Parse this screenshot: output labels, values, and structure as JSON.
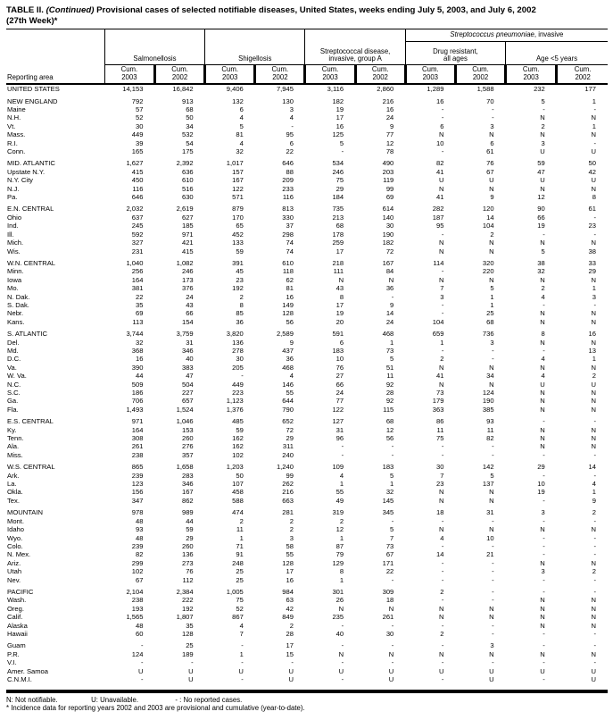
{
  "title": {
    "part1": "TABLE II. ",
    "continued": "(Continued)",
    "part2": " Provisional cases of selected notifiable diseases, United States, weeks ending July 5, 2003, and July 6, 2002",
    "line2": "(27th Week)*"
  },
  "header": {
    "reporting_area_label": "Reporting area",
    "spanner_italic": "Streptococcus pneumoniae",
    "spanner_rest": ", invasive",
    "groups": [
      {
        "line1": "Salmonellosis",
        "line2": ""
      },
      {
        "line1": "Shigellosis",
        "line2": ""
      },
      {
        "line1": "Streptococcal disease,",
        "line2": "invasive, group A"
      },
      {
        "line1": "Drug resistant,",
        "line2": "all ages"
      },
      {
        "line1": "Age <5 years",
        "line2": ""
      }
    ],
    "sub_columns": [
      {
        "line1": "Cum.",
        "line2": "2003"
      },
      {
        "line1": "Cum.",
        "line2": "2002"
      }
    ]
  },
  "table": {
    "sections": [
      [
        [
          "UNITED STATES",
          "14,153",
          "16,842",
          "9,406",
          "7,945",
          "3,116",
          "2,860",
          "1,289",
          "1,588",
          "232",
          "177"
        ]
      ],
      [
        [
          "NEW ENGLAND",
          "792",
          "913",
          "132",
          "130",
          "182",
          "216",
          "16",
          "70",
          "5",
          "1"
        ],
        [
          "Maine",
          "57",
          "68",
          "6",
          "3",
          "19",
          "16",
          "-",
          "-",
          "-",
          "-"
        ],
        [
          "N.H.",
          "52",
          "50",
          "4",
          "4",
          "17",
          "24",
          "-",
          "-",
          "N",
          "N"
        ],
        [
          "Vt.",
          "30",
          "34",
          "5",
          "-",
          "16",
          "9",
          "6",
          "3",
          "2",
          "1"
        ],
        [
          "Mass.",
          "449",
          "532",
          "81",
          "95",
          "125",
          "77",
          "N",
          "N",
          "N",
          "N"
        ],
        [
          "R.I.",
          "39",
          "54",
          "4",
          "6",
          "5",
          "12",
          "10",
          "6",
          "3",
          "-"
        ],
        [
          "Conn.",
          "165",
          "175",
          "32",
          "22",
          "-",
          "78",
          "-",
          "61",
          "U",
          "U"
        ]
      ],
      [
        [
          "MID. ATLANTIC",
          "1,627",
          "2,392",
          "1,017",
          "646",
          "534",
          "490",
          "82",
          "76",
          "59",
          "50"
        ],
        [
          "Upstate N.Y.",
          "415",
          "636",
          "157",
          "88",
          "246",
          "203",
          "41",
          "67",
          "47",
          "42"
        ],
        [
          "N.Y. City",
          "450",
          "610",
          "167",
          "209",
          "75",
          "119",
          "U",
          "U",
          "U",
          "U"
        ],
        [
          "N.J.",
          "116",
          "516",
          "122",
          "233",
          "29",
          "99",
          "N",
          "N",
          "N",
          "N"
        ],
        [
          "Pa.",
          "646",
          "630",
          "571",
          "116",
          "184",
          "69",
          "41",
          "9",
          "12",
          "8"
        ]
      ],
      [
        [
          "E.N. CENTRAL",
          "2,032",
          "2,619",
          "879",
          "813",
          "735",
          "614",
          "282",
          "120",
          "90",
          "61"
        ],
        [
          "Ohio",
          "637",
          "627",
          "170",
          "330",
          "213",
          "140",
          "187",
          "14",
          "66",
          "-"
        ],
        [
          "Ind.",
          "245",
          "185",
          "65",
          "37",
          "68",
          "30",
          "95",
          "104",
          "19",
          "23"
        ],
        [
          "Ill.",
          "592",
          "971",
          "452",
          "298",
          "178",
          "190",
          "-",
          "2",
          "-",
          "-"
        ],
        [
          "Mich.",
          "327",
          "421",
          "133",
          "74",
          "259",
          "182",
          "N",
          "N",
          "N",
          "N"
        ],
        [
          "Wis.",
          "231",
          "415",
          "59",
          "74",
          "17",
          "72",
          "N",
          "N",
          "5",
          "38"
        ]
      ],
      [
        [
          "W.N. CENTRAL",
          "1,040",
          "1,082",
          "391",
          "610",
          "218",
          "167",
          "114",
          "320",
          "38",
          "33"
        ],
        [
          "Minn.",
          "256",
          "246",
          "45",
          "118",
          "111",
          "84",
          "-",
          "220",
          "32",
          "29"
        ],
        [
          "Iowa",
          "164",
          "173",
          "23",
          "62",
          "N",
          "N",
          "N",
          "N",
          "N",
          "N"
        ],
        [
          "Mo.",
          "381",
          "376",
          "192",
          "81",
          "43",
          "36",
          "7",
          "5",
          "2",
          "1"
        ],
        [
          "N. Dak.",
          "22",
          "24",
          "2",
          "16",
          "8",
          "-",
          "3",
          "1",
          "4",
          "3"
        ],
        [
          "S. Dak.",
          "35",
          "43",
          "8",
          "149",
          "17",
          "9",
          "-",
          "1",
          "-",
          "-"
        ],
        [
          "Nebr.",
          "69",
          "66",
          "85",
          "128",
          "19",
          "14",
          "-",
          "25",
          "N",
          "N"
        ],
        [
          "Kans.",
          "113",
          "154",
          "36",
          "56",
          "20",
          "24",
          "104",
          "68",
          "N",
          "N"
        ]
      ],
      [
        [
          "S. ATLANTIC",
          "3,744",
          "3,759",
          "3,820",
          "2,589",
          "591",
          "468",
          "659",
          "736",
          "8",
          "16"
        ],
        [
          "Del.",
          "32",
          "31",
          "136",
          "9",
          "6",
          "1",
          "1",
          "3",
          "N",
          "N"
        ],
        [
          "Md.",
          "368",
          "346",
          "278",
          "437",
          "183",
          "73",
          "-",
          "-",
          "-",
          "13"
        ],
        [
          "D.C.",
          "16",
          "40",
          "30",
          "36",
          "10",
          "5",
          "2",
          "-",
          "4",
          "1"
        ],
        [
          "Va.",
          "390",
          "383",
          "205",
          "468",
          "76",
          "51",
          "N",
          "N",
          "N",
          "N"
        ],
        [
          "W. Va.",
          "44",
          "47",
          "-",
          "4",
          "27",
          "11",
          "41",
          "34",
          "4",
          "2"
        ],
        [
          "N.C.",
          "509",
          "504",
          "449",
          "146",
          "66",
          "92",
          "N",
          "N",
          "U",
          "U"
        ],
        [
          "S.C.",
          "186",
          "227",
          "223",
          "55",
          "24",
          "28",
          "73",
          "124",
          "N",
          "N"
        ],
        [
          "Ga.",
          "706",
          "657",
          "1,123",
          "644",
          "77",
          "92",
          "179",
          "190",
          "N",
          "N"
        ],
        [
          "Fla.",
          "1,493",
          "1,524",
          "1,376",
          "790",
          "122",
          "115",
          "363",
          "385",
          "N",
          "N"
        ]
      ],
      [
        [
          "E.S. CENTRAL",
          "971",
          "1,046",
          "485",
          "652",
          "127",
          "68",
          "86",
          "93",
          "-",
          "-"
        ],
        [
          "Ky.",
          "164",
          "153",
          "59",
          "72",
          "31",
          "12",
          "11",
          "11",
          "N",
          "N"
        ],
        [
          "Tenn.",
          "308",
          "260",
          "162",
          "29",
          "96",
          "56",
          "75",
          "82",
          "N",
          "N"
        ],
        [
          "Ala.",
          "261",
          "276",
          "162",
          "311",
          "-",
          "-",
          "-",
          "-",
          "N",
          "N"
        ],
        [
          "Miss.",
          "238",
          "357",
          "102",
          "240",
          "-",
          "-",
          "-",
          "-",
          "-",
          "-"
        ]
      ],
      [
        [
          "W.S. CENTRAL",
          "865",
          "1,658",
          "1,203",
          "1,240",
          "109",
          "183",
          "30",
          "142",
          "29",
          "14"
        ],
        [
          "Ark.",
          "239",
          "283",
          "50",
          "99",
          "4",
          "5",
          "7",
          "5",
          "-",
          "-"
        ],
        [
          "La.",
          "123",
          "346",
          "107",
          "262",
          "1",
          "1",
          "23",
          "137",
          "10",
          "4"
        ],
        [
          "Okla.",
          "156",
          "167",
          "458",
          "216",
          "55",
          "32",
          "N",
          "N",
          "19",
          "1"
        ],
        [
          "Tex.",
          "347",
          "862",
          "588",
          "663",
          "49",
          "145",
          "N",
          "N",
          "-",
          "9"
        ]
      ],
      [
        [
          "MOUNTAIN",
          "978",
          "989",
          "474",
          "281",
          "319",
          "345",
          "18",
          "31",
          "3",
          "2"
        ],
        [
          "Mont.",
          "48",
          "44",
          "2",
          "2",
          "2",
          "-",
          "-",
          "-",
          "-",
          "-"
        ],
        [
          "Idaho",
          "93",
          "59",
          "11",
          "2",
          "12",
          "5",
          "N",
          "N",
          "N",
          "N"
        ],
        [
          "Wyo.",
          "48",
          "29",
          "1",
          "3",
          "1",
          "7",
          "4",
          "10",
          "-",
          "-"
        ],
        [
          "Colo.",
          "239",
          "260",
          "71",
          "58",
          "87",
          "73",
          "-",
          "-",
          "-",
          "-"
        ],
        [
          "N. Mex.",
          "82",
          "136",
          "91",
          "55",
          "79",
          "67",
          "14",
          "21",
          "-",
          "-"
        ],
        [
          "Ariz.",
          "299",
          "273",
          "248",
          "128",
          "129",
          "171",
          "-",
          "-",
          "N",
          "N"
        ],
        [
          "Utah",
          "102",
          "76",
          "25",
          "17",
          "8",
          "22",
          "-",
          "-",
          "3",
          "2"
        ],
        [
          "Nev.",
          "67",
          "112",
          "25",
          "16",
          "1",
          "-",
          "-",
          "-",
          "-",
          "-"
        ]
      ],
      [
        [
          "PACIFIC",
          "2,104",
          "2,384",
          "1,005",
          "984",
          "301",
          "309",
          "2",
          "-",
          "-",
          "-"
        ],
        [
          "Wash.",
          "238",
          "222",
          "75",
          "63",
          "26",
          "18",
          "-",
          "-",
          "N",
          "N"
        ],
        [
          "Oreg.",
          "193",
          "192",
          "52",
          "42",
          "N",
          "N",
          "N",
          "N",
          "N",
          "N"
        ],
        [
          "Calif.",
          "1,565",
          "1,807",
          "867",
          "849",
          "235",
          "261",
          "N",
          "N",
          "N",
          "N"
        ],
        [
          "Alaska",
          "48",
          "35",
          "4",
          "2",
          "-",
          "-",
          "-",
          "-",
          "N",
          "N"
        ],
        [
          "Hawaii",
          "60",
          "128",
          "7",
          "28",
          "40",
          "30",
          "2",
          "-",
          "-",
          "-"
        ]
      ],
      [
        [
          "Guam",
          "-",
          "25",
          "-",
          "17",
          "-",
          "-",
          "-",
          "3",
          "-",
          "-"
        ],
        [
          "P.R.",
          "124",
          "189",
          "1",
          "15",
          "N",
          "N",
          "N",
          "N",
          "N",
          "N"
        ],
        [
          "V.I.",
          "-",
          "-",
          "-",
          "-",
          "-",
          "-",
          "-",
          "-",
          "-",
          "-"
        ],
        [
          "Amer. Samoa",
          "U",
          "U",
          "U",
          "U",
          "U",
          "U",
          "U",
          "U",
          "U",
          "U"
        ],
        [
          "C.N.M.I.",
          "-",
          "U",
          "-",
          "U",
          "-",
          "U",
          "-",
          "U",
          "-",
          "U"
        ]
      ]
    ]
  },
  "footer": {
    "n_label": "N: Not notifiable.",
    "u_label": "U: Unavailable.",
    "dash_label": "- : No reported cases.",
    "footnote": "* Incidence data for reporting years 2002 and 2003 are provisional and cumulative (year-to-date)."
  }
}
